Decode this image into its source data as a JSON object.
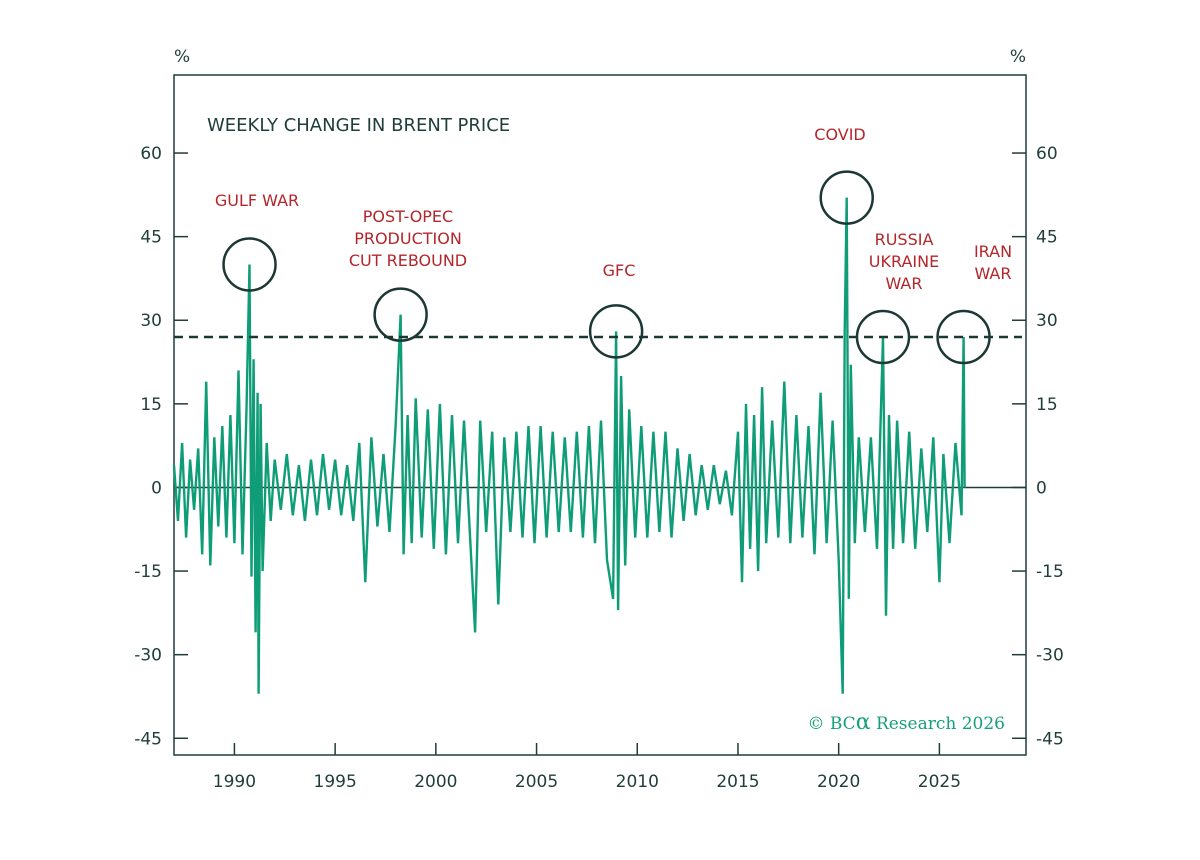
{
  "chart_data": {
    "type": "line",
    "title": "WEEKLY CHANGE IN BRENT PRICE",
    "ylabel_left": "%",
    "ylabel_right": "%",
    "xlabel": "",
    "xlim": [
      1987.0,
      2029.3
    ],
    "ylim": [
      -48,
      74
    ],
    "x_ticks": [
      1990,
      1995,
      2000,
      2005,
      2010,
      2015,
      2020,
      2025
    ],
    "y_ticks": [
      -45,
      -30,
      -15,
      0,
      15,
      30,
      45,
      60
    ],
    "threshold": 27,
    "series": [
      {
        "values": [
          [
            1987.0,
            4
          ],
          [
            1987.2,
            -6
          ],
          [
            1987.4,
            8
          ],
          [
            1987.6,
            -9
          ],
          [
            1987.8,
            5
          ],
          [
            1988.0,
            -4
          ],
          [
            1988.2,
            7
          ],
          [
            1988.4,
            -12
          ],
          [
            1988.6,
            19
          ],
          [
            1988.8,
            -14
          ],
          [
            1989.0,
            9
          ],
          [
            1989.2,
            -7
          ],
          [
            1989.4,
            11
          ],
          [
            1989.6,
            -9
          ],
          [
            1989.8,
            13
          ],
          [
            1990.0,
            -10
          ],
          [
            1990.2,
            21
          ],
          [
            1990.4,
            -12
          ],
          [
            1990.6,
            14
          ],
          [
            1990.75,
            40
          ],
          [
            1990.85,
            -16
          ],
          [
            1990.95,
            23
          ],
          [
            1991.05,
            -26
          ],
          [
            1991.15,
            17
          ],
          [
            1991.2,
            -37
          ],
          [
            1991.3,
            15
          ],
          [
            1991.4,
            -15
          ],
          [
            1991.6,
            8
          ],
          [
            1991.8,
            -6
          ],
          [
            1992.0,
            5
          ],
          [
            1992.3,
            -4
          ],
          [
            1992.6,
            6
          ],
          [
            1992.9,
            -5
          ],
          [
            1993.2,
            4
          ],
          [
            1993.5,
            -6
          ],
          [
            1993.8,
            5
          ],
          [
            1994.1,
            -5
          ],
          [
            1994.4,
            6
          ],
          [
            1994.7,
            -4
          ],
          [
            1995.0,
            5
          ],
          [
            1995.3,
            -5
          ],
          [
            1995.6,
            4
          ],
          [
            1995.9,
            -6
          ],
          [
            1996.2,
            8
          ],
          [
            1996.5,
            -17
          ],
          [
            1996.8,
            9
          ],
          [
            1997.1,
            -7
          ],
          [
            1997.4,
            6
          ],
          [
            1997.7,
            -8
          ],
          [
            1998.0,
            11
          ],
          [
            1998.25,
            31
          ],
          [
            1998.4,
            -12
          ],
          [
            1998.6,
            13
          ],
          [
            1998.8,
            -10
          ],
          [
            1999.0,
            16
          ],
          [
            1999.3,
            -9
          ],
          [
            1999.6,
            14
          ],
          [
            1999.9,
            -11
          ],
          [
            2000.2,
            15
          ],
          [
            2000.5,
            -12
          ],
          [
            2000.8,
            13
          ],
          [
            2001.1,
            -10
          ],
          [
            2001.4,
            12
          ],
          [
            2001.7,
            -9
          ],
          [
            2001.95,
            -26
          ],
          [
            2002.2,
            12
          ],
          [
            2002.5,
            -8
          ],
          [
            2002.8,
            10
          ],
          [
            2003.1,
            -21
          ],
          [
            2003.4,
            9
          ],
          [
            2003.7,
            -8
          ],
          [
            2004.0,
            10
          ],
          [
            2004.3,
            -9
          ],
          [
            2004.6,
            11
          ],
          [
            2004.9,
            -10
          ],
          [
            2005.2,
            11
          ],
          [
            2005.5,
            -9
          ],
          [
            2005.8,
            10
          ],
          [
            2006.1,
            -8
          ],
          [
            2006.4,
            9
          ],
          [
            2006.7,
            -8
          ],
          [
            2007.0,
            10
          ],
          [
            2007.3,
            -9
          ],
          [
            2007.6,
            11
          ],
          [
            2007.9,
            -10
          ],
          [
            2008.2,
            12
          ],
          [
            2008.5,
            -13
          ],
          [
            2008.8,
            -20
          ],
          [
            2008.95,
            28
          ],
          [
            2009.05,
            -22
          ],
          [
            2009.2,
            20
          ],
          [
            2009.4,
            -14
          ],
          [
            2009.6,
            14
          ],
          [
            2009.9,
            -9
          ],
          [
            2010.2,
            11
          ],
          [
            2010.5,
            -9
          ],
          [
            2010.8,
            10
          ],
          [
            2011.1,
            -8
          ],
          [
            2011.4,
            10
          ],
          [
            2011.7,
            -9
          ],
          [
            2012.0,
            7
          ],
          [
            2012.3,
            -6
          ],
          [
            2012.6,
            6
          ],
          [
            2012.9,
            -5
          ],
          [
            2013.2,
            4
          ],
          [
            2013.5,
            -4
          ],
          [
            2013.8,
            4
          ],
          [
            2014.1,
            -3
          ],
          [
            2014.4,
            3
          ],
          [
            2014.7,
            -5
          ],
          [
            2015.0,
            10
          ],
          [
            2015.2,
            -17
          ],
          [
            2015.4,
            15
          ],
          [
            2015.6,
            -11
          ],
          [
            2015.8,
            13
          ],
          [
            2016.0,
            -15
          ],
          [
            2016.2,
            18
          ],
          [
            2016.4,
            -10
          ],
          [
            2016.7,
            12
          ],
          [
            2017.0,
            -9
          ],
          [
            2017.3,
            19
          ],
          [
            2017.6,
            -10
          ],
          [
            2017.9,
            13
          ],
          [
            2018.2,
            -9
          ],
          [
            2018.5,
            11
          ],
          [
            2018.8,
            -12
          ],
          [
            2019.1,
            17
          ],
          [
            2019.4,
            -10
          ],
          [
            2019.7,
            12
          ],
          [
            2020.0,
            -13
          ],
          [
            2020.2,
            -37
          ],
          [
            2020.3,
            28
          ],
          [
            2020.4,
            52
          ],
          [
            2020.5,
            -20
          ],
          [
            2020.6,
            22
          ],
          [
            2020.8,
            -10
          ],
          [
            2021.0,
            9
          ],
          [
            2021.3,
            -8
          ],
          [
            2021.6,
            9
          ],
          [
            2021.9,
            -11
          ],
          [
            2022.2,
            27
          ],
          [
            2022.35,
            -23
          ],
          [
            2022.5,
            13
          ],
          [
            2022.7,
            -11
          ],
          [
            2022.9,
            12
          ],
          [
            2023.2,
            -10
          ],
          [
            2023.5,
            10
          ],
          [
            2023.8,
            -11
          ],
          [
            2024.1,
            7
          ],
          [
            2024.4,
            -8
          ],
          [
            2024.7,
            9
          ],
          [
            2025.0,
            -17
          ],
          [
            2025.2,
            6
          ],
          [
            2025.5,
            -10
          ],
          [
            2025.8,
            8
          ],
          [
            2026.1,
            -5
          ],
          [
            2026.2,
            27
          ],
          [
            2026.25,
            0
          ]
        ]
      }
    ],
    "annotations": [
      {
        "lines": [
          "GULF WAR"
        ],
        "x": 1990.75,
        "y": 40
      },
      {
        "lines": [
          "POST-OPEC",
          "PRODUCTION",
          "CUT REBOUND"
        ],
        "x": 1998.25,
        "y": 31
      },
      {
        "lines": [
          "GFC"
        ],
        "x": 2008.95,
        "y": 28
      },
      {
        "lines": [
          "COVID"
        ],
        "x": 2020.4,
        "y": 52
      },
      {
        "lines": [
          "RUSSIA",
          "UKRAINE",
          "WAR"
        ],
        "x": 2022.2,
        "y": 27
      },
      {
        "lines": [
          "IRAN",
          "WAR"
        ],
        "x": 2026.2,
        "y": 27
      }
    ]
  },
  "credit": {
    "prefix": "© BC",
    "alpha": "α",
    "suffix": " Research 2026"
  },
  "colors": {
    "series": "#0f9d77",
    "frame": "#1f3d3a",
    "annotation": "#b3262b",
    "circle": "#1c3834"
  }
}
